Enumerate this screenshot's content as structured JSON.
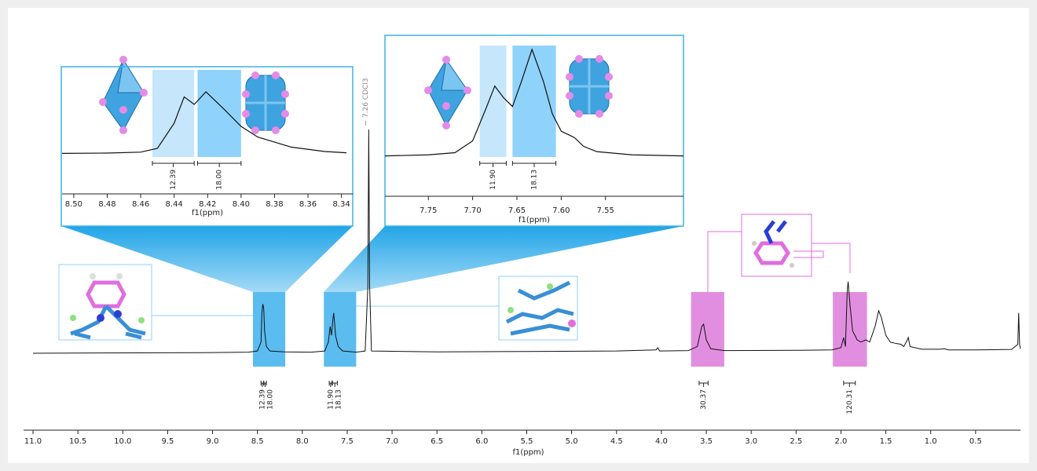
{
  "chart_data": [
    {
      "type": "line",
      "x_label": "f1(ppm)",
      "color": "#111111",
      "xlim": [
        11,
        0
      ],
      "ylim": [
        0,
        100
      ],
      "xticks": [
        {
          "value": 11,
          "label": "11.0"
        },
        10.5,
        {
          "value": 10,
          "label": "10.0"
        },
        9.5,
        {
          "value": 9,
          "label": "9.0"
        },
        8.5,
        {
          "value": 8,
          "label": "8.0"
        },
        7.5,
        {
          "value": 7,
          "label": "7.0"
        },
        6.5,
        {
          "value": 6,
          "label": "6.0"
        },
        5.5,
        {
          "value": 5,
          "label": "5.0"
        },
        4.5,
        {
          "value": 4,
          "label": "4.0"
        },
        3.5,
        {
          "value": 3,
          "label": "3.0"
        },
        2.5,
        {
          "value": 2,
          "label": "2.0"
        },
        1.5,
        {
          "value": 1,
          "label": "1.0"
        },
        0.5
      ],
      "x": [
        11,
        9,
        8.6,
        8.5,
        8.46,
        8.45,
        8.44,
        8.43,
        8.42,
        8.4,
        8.36,
        8.2,
        7.9,
        7.75,
        7.71,
        7.69,
        7.675,
        7.66,
        7.65,
        7.63,
        7.6,
        7.55,
        7.4,
        7.3,
        7.27,
        7.26,
        7.25,
        7.23,
        6.5,
        5.5,
        4.5,
        4.06,
        4.04,
        4.02,
        3.7,
        3.6,
        3.55,
        3.53,
        3.5,
        3.45,
        3.3,
        2.5,
        2.1,
        2,
        1.97,
        1.95,
        1.93,
        1.92,
        1.9,
        1.87,
        1.82,
        1.78,
        1.72,
        1.68,
        1.62,
        1.58,
        1.55,
        1.5,
        1.45,
        1.4,
        1.33,
        1.3,
        1.26,
        1.25,
        1.23,
        1.1,
        0.9,
        0.85,
        0.8,
        0.5,
        0.1,
        0.03,
        0.02,
        0.01,
        0
      ],
      "values": [
        0,
        0.3,
        0.5,
        1,
        5,
        18,
        22,
        20,
        10,
        3,
        1,
        0.6,
        0.5,
        1,
        5,
        12,
        8,
        15,
        18,
        8,
        3,
        1,
        0.5,
        1,
        30,
        100,
        30,
        1,
        0.6,
        0.8,
        1,
        1.5,
        2.5,
        1,
        1.2,
        3,
        12,
        13,
        6,
        2,
        1.2,
        1.3,
        1.5,
        2.5,
        7,
        3,
        28,
        32,
        22,
        10,
        6,
        5,
        6,
        5,
        12,
        19,
        16,
        8,
        5,
        4.5,
        4,
        3,
        6,
        7,
        3,
        1.8,
        1.8,
        2,
        1.5,
        1.5,
        1.7,
        4,
        18,
        4,
        2
      ],
      "highlights": [
        {
          "range": [
            8.55,
            8.19
          ],
          "color": "#5bbcf0"
        },
        {
          "range": [
            7.76,
            7.4
          ],
          "color": "#5bbcf0"
        },
        {
          "range": [
            3.67,
            3.3
          ],
          "color": "#e28ee0"
        },
        {
          "range": [
            2.09,
            1.71
          ],
          "color": "#e28ee0"
        }
      ],
      "integrals": {
        "values": [
          12.39,
          18,
          11.9,
          18.13,
          30.37,
          120.31
        ],
        "value_labels": [
          "12.39",
          "18.00",
          "11.90",
          "18.13",
          "30.37",
          "120.31"
        ],
        "ranges": [
          [
            8.46,
            8.43
          ],
          [
            8.43,
            8.4
          ],
          [
            7.7,
            7.67
          ],
          [
            7.665,
            7.61
          ],
          [
            3.58,
            3.48
          ],
          [
            1.97,
            1.84
          ]
        ]
      },
      "annotations": [
        {
          "text": "7.26 CDCl3",
          "x": 7.26
        }
      ]
    },
    {
      "type": "line",
      "x_label": "f1(ppm)",
      "color": "#111111",
      "xlim": [
        8.507,
        8.337
      ],
      "ylim": [
        0,
        100
      ],
      "xticks": [
        {
          "value": 8.5,
          "label": "8.50"
        },
        8.48,
        8.46,
        8.44,
        8.42,
        {
          "value": 8.4,
          "label": "8.40"
        },
        8.38,
        8.36,
        8.34
      ],
      "x": [
        8.507,
        8.48,
        8.46,
        8.45,
        8.44,
        8.434,
        8.428,
        8.421,
        8.41,
        8.4,
        8.39,
        8.37,
        8.35,
        8.337
      ],
      "values": [
        2,
        2.5,
        4,
        10,
        50,
        92,
        80,
        100,
        72,
        45,
        28,
        12,
        5,
        3
      ],
      "highlights": [
        {
          "range": [
            8.453,
            8.428
          ],
          "color": "#c5e6fb"
        },
        {
          "range": [
            8.426,
            8.4
          ],
          "color": "#8fd3fb"
        }
      ],
      "integrals": {
        "values": [
          12.39,
          18
        ],
        "value_labels": [
          "12.39",
          "18.00"
        ],
        "ranges": [
          [
            8.453,
            8.428
          ],
          [
            8.426,
            8.4
          ]
        ]
      }
    },
    {
      "type": "line",
      "x_label": "f1(ppm)",
      "color": "#111111",
      "xlim": [
        7.799,
        7.462
      ],
      "ylim": [
        0,
        100
      ],
      "xticks": [
        7.75,
        {
          "value": 7.7,
          "label": "7.70"
        },
        7.65,
        {
          "value": 7.6,
          "label": "7.60"
        },
        7.55
      ],
      "x": [
        7.799,
        7.75,
        7.72,
        7.7,
        7.685,
        7.675,
        7.665,
        7.655,
        7.645,
        7.633,
        7.62,
        7.61,
        7.6,
        7.59,
        7.585,
        7.575,
        7.56,
        7.52,
        7.462
      ],
      "values": [
        1,
        2,
        4,
        15,
        45,
        66,
        55,
        47,
        70,
        100,
        70,
        40,
        24,
        20,
        18,
        10,
        5,
        2,
        1
      ],
      "highlights": [
        {
          "range": [
            7.692,
            7.662
          ],
          "color": "#c5e6fb"
        },
        {
          "range": [
            7.655,
            7.606
          ],
          "color": "#8fd3fb"
        }
      ],
      "integrals": {
        "values": [
          11.9,
          18.13
        ],
        "value_labels": [
          "11.90",
          "18.13"
        ],
        "ranges": [
          [
            7.692,
            7.662
          ],
          [
            7.655,
            7.606
          ]
        ]
      }
    }
  ]
}
